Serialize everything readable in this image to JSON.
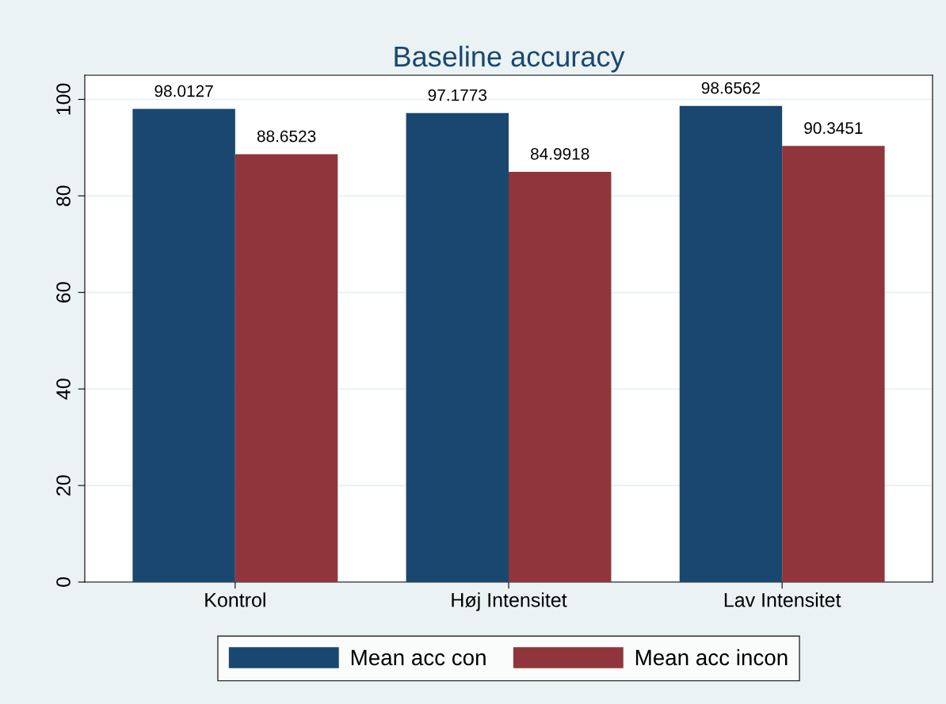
{
  "chart_data": {
    "type": "bar",
    "title": "Baseline accuracy",
    "categories": [
      "Kontrol",
      "Høj Intensitet",
      "Lav Intensitet"
    ],
    "series": [
      {
        "name": "Mean acc con",
        "color": "#1a476f",
        "values": [
          98.0127,
          97.1773,
          98.6562
        ]
      },
      {
        "name": "Mean acc incon",
        "color": "#90353b",
        "values": [
          88.6523,
          84.9918,
          90.3451
        ]
      }
    ],
    "ylim": [
      0,
      105
    ],
    "yticks": [
      0,
      20,
      40,
      60,
      80,
      100
    ],
    "grid": "y",
    "legend": "bottom",
    "data_labels": true
  }
}
